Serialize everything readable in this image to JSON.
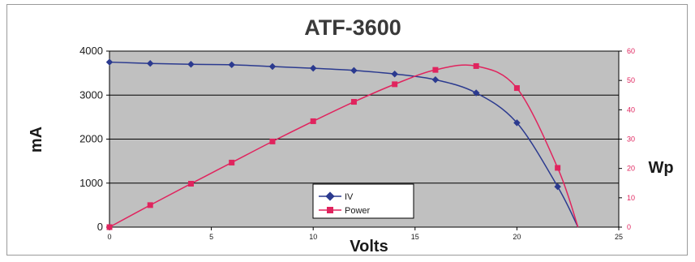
{
  "chart_data": {
    "type": "line",
    "title": "ATF-3600",
    "xlabel": "Volts",
    "ylabel_left": "mA",
    "ylabel_right": "Wp",
    "xlim": [
      0,
      25
    ],
    "ylim_left": [
      0,
      4000
    ],
    "ylim_right": [
      0,
      60
    ],
    "x_ticks": [
      0,
      5,
      10,
      15,
      20,
      25
    ],
    "y_left_ticks": [
      0,
      1000,
      2000,
      3000,
      4000
    ],
    "y_right_ticks": [
      0,
      10,
      20,
      30,
      40,
      50,
      60
    ],
    "grid": true,
    "legend_position": "center",
    "series": [
      {
        "name": "IV",
        "axis": "left",
        "color": "#2b3a8f",
        "marker": "diamond",
        "x": [
          0,
          2,
          4,
          6,
          8,
          10,
          12,
          14,
          16,
          18,
          20,
          22,
          23
        ],
        "values": [
          3750,
          3720,
          3700,
          3690,
          3650,
          3610,
          3560,
          3480,
          3350,
          3050,
          2370,
          920,
          0
        ]
      },
      {
        "name": "Power",
        "axis": "right",
        "color": "#e0245e",
        "marker": "square",
        "x": [
          0,
          2,
          4,
          6,
          8,
          10,
          12,
          14,
          16,
          18,
          20,
          22,
          23
        ],
        "values": [
          0,
          7.5,
          14.8,
          22,
          29.2,
          36.1,
          42.7,
          48.7,
          53.6,
          54.9,
          47.4,
          20.2,
          0
        ]
      }
    ]
  }
}
